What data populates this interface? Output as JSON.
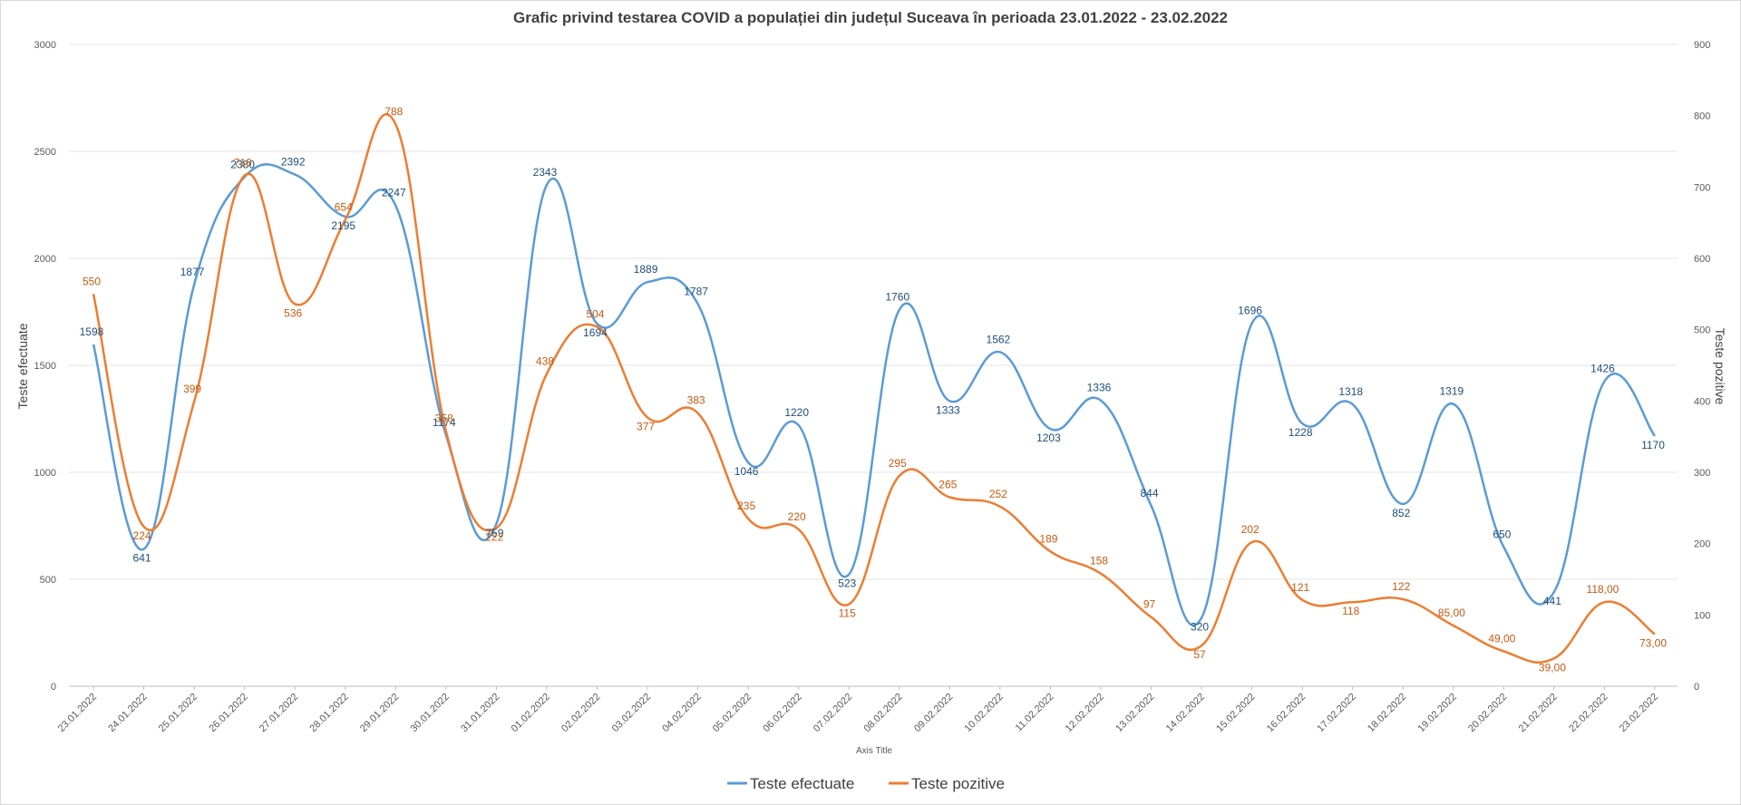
{
  "chart_data": {
    "type": "line",
    "title": "Grafic privind testarea COVID a populației din județul Suceava în perioada 23.01.2022 - 23.02.2022",
    "xlabel": "Axis Title",
    "ylabel": "Teste efectuate",
    "y2label": "Teste pozitive",
    "ylim": [
      0,
      3000
    ],
    "y2lim": [
      0,
      900
    ],
    "yticks": [
      0,
      500,
      1000,
      1500,
      2000,
      2500,
      3000
    ],
    "y2ticks": [
      0,
      100,
      200,
      300,
      400,
      500,
      600,
      700,
      800,
      900
    ],
    "grid": true,
    "legend_position": "bottom",
    "categories": [
      "23.01.2022",
      "24.01.2022",
      "25.01.2022",
      "26.01.2022",
      "27.01.2022",
      "28.01.2022",
      "29.01.2022",
      "30.01.2022",
      "31.01.2022",
      "01.02.2022",
      "02.02.2022",
      "03.02.2022",
      "04.02.2022",
      "05.02.2022",
      "06.02.2022",
      "07.02.2022",
      "08.02.2022",
      "09.02.2022",
      "10.02.2022",
      "11.02.2022",
      "12.02.2022",
      "13.02.2022",
      "14.02.2022",
      "15.02.2022",
      "16.02.2022",
      "17.02.2022",
      "18.02.2022",
      "19.02.2022",
      "20.02.2022",
      "21.02.2022",
      "22.02.2022",
      "23.02.2022"
    ],
    "series": [
      {
        "name": "Teste efectuate",
        "axis": "left",
        "color": "#5b9bd5",
        "label_color": "#1f4e79",
        "values": [
          1598,
          641,
          1877,
          2380,
          2392,
          2195,
          2247,
          1174,
          759,
          2343,
          1694,
          1889,
          1787,
          1046,
          1220,
          523,
          1760,
          1333,
          1562,
          1203,
          1336,
          844,
          320,
          1696,
          1228,
          1318,
          852,
          1319,
          650,
          441,
          1426,
          1170
        ],
        "labels": [
          "1598",
          "641",
          "1877",
          "2380",
          "2392",
          "2195",
          "2247",
          "1174",
          "759",
          "2343",
          "1694",
          "1889",
          "1787",
          "1046",
          "1220",
          "523",
          "1760",
          "1333",
          "1562",
          "1203",
          "1336",
          "844",
          "320",
          "1696",
          "1228",
          "1318",
          "852",
          "1319",
          "650",
          "441",
          "1426",
          "1170"
        ]
      },
      {
        "name": "Teste pozitive",
        "axis": "right",
        "color": "#ed7d31",
        "label_color": "#c55a11",
        "values": [
          550,
          224,
          399,
          716,
          536,
          654,
          788,
          358,
          222,
          438,
          504,
          377,
          383,
          235,
          220,
          115,
          295,
          265,
          252,
          189,
          158,
          97,
          57,
          202,
          121,
          118,
          122,
          85,
          49,
          39,
          118,
          73
        ],
        "labels": [
          "550",
          "224",
          "399",
          "716",
          "536",
          "654",
          "788",
          "358",
          "222",
          "438",
          "504",
          "377",
          "383",
          "235",
          "220",
          "115",
          "295",
          "265",
          "252",
          "189",
          "158",
          "97",
          "57",
          "202",
          "121",
          "118",
          "122",
          "85,00",
          "49,00",
          "39,00",
          "118,00",
          "73,00"
        ]
      }
    ]
  }
}
